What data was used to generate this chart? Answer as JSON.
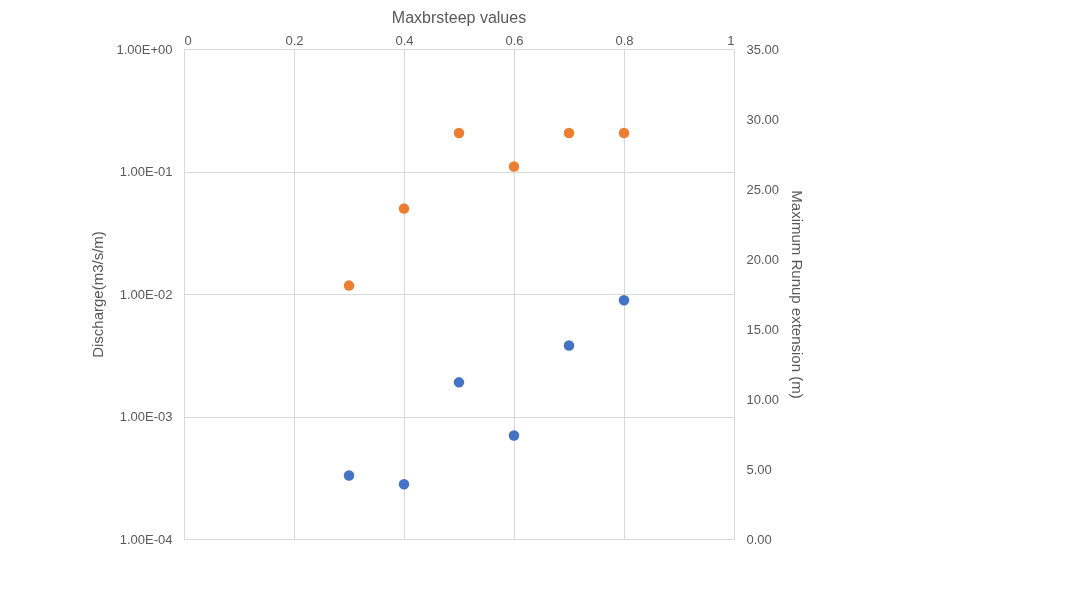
{
  "chart_data": {
    "type": "scatter",
    "title": "Maxbrsteep values",
    "ylabel": "Discharge(m3/s/m)",
    "y2label": "Maximum Runup extension (m)",
    "log": "y",
    "grid": true,
    "marker": "circle",
    "xlim": [
      0,
      1
    ],
    "xticks": [
      0,
      0.2,
      0.4,
      0.6,
      0.8,
      1
    ],
    "ylim": [
      0.0001,
      1
    ],
    "yticks": [
      {
        "value": 0.0001,
        "label": "1.00E-04"
      },
      {
        "value": 0.001,
        "label": "1.00E-03"
      },
      {
        "value": 0.01,
        "label": "1.00E-02"
      },
      {
        "value": 0.1,
        "label": "1.00E-01"
      },
      {
        "value": 1,
        "label": "1.00E+00"
      }
    ],
    "y2lim": [
      0,
      35
    ],
    "y2ticks": [
      {
        "value": 0,
        "label": "0.00"
      },
      {
        "value": 5,
        "label": "5.00"
      },
      {
        "value": 10,
        "label": "10.00"
      },
      {
        "value": 15,
        "label": "15.00"
      },
      {
        "value": 20,
        "label": "20.00"
      },
      {
        "value": 25,
        "label": "25.00"
      },
      {
        "value": 30,
        "label": "30.00"
      },
      {
        "value": 35,
        "label": "35.00"
      }
    ],
    "series": [
      {
        "color": "#4472c4",
        "x": [
          0.3,
          0.4,
          0.5,
          0.6,
          0.7,
          0.8
        ],
        "values": [
          0.00033,
          0.00028,
          0.0019,
          0.0007,
          0.0038,
          0.0089
        ]
      },
      {
        "color": "#ed7d31",
        "axis": "y2",
        "x": [
          0.3,
          0.4,
          0.5,
          0.6,
          0.7,
          0.8
        ],
        "values": [
          18.1,
          23.6,
          29.0,
          26.6,
          29.0,
          29.0
        ]
      }
    ]
  }
}
